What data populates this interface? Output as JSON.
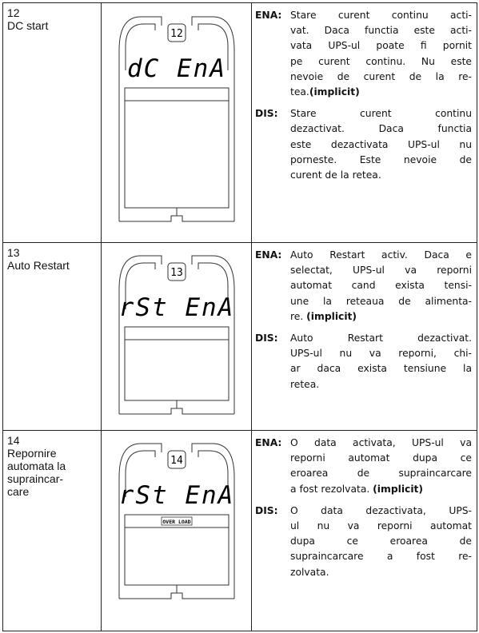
{
  "rows": [
    {
      "id": "12",
      "name": [
        "DC start"
      ],
      "display": {
        "code": "12",
        "text": "dC EnA"
      },
      "options": [
        {
          "label": "ENA:",
          "lines": [
            "Stare curent continu acti-",
            "vat. Daca functia este acti-",
            "vata UPS-ul poate fi pornit",
            "pe curent continu. Nu este",
            "nevoie de curent de la re-",
            "tea."
          ],
          "note": "(implicit)"
        },
        {
          "label": "DIS:",
          "lines": [
            "Stare curent continu",
            "dezactivat. Daca functia",
            "este dezactivata UPS-ul nu",
            "porneste. Este nevoie de",
            "curent de la retea."
          ]
        }
      ]
    },
    {
      "id": "13",
      "name": [
        "Auto Restart"
      ],
      "display": {
        "code": "13",
        "text": "rSt EnA"
      },
      "options": [
        {
          "label": "ENA:",
          "lines": [
            "Auto Restart activ. Daca e",
            "selectat, UPS-ul va reporni",
            "automat cand exista tensi-",
            "une la reteaua de alimenta-",
            "re. "
          ],
          "note": "(implicit)"
        },
        {
          "label": "DIS:",
          "lines": [
            "Auto Restart dezactivat.",
            "UPS-ul nu va reporni, chi-",
            "ar daca exista tensiune la",
            "retea."
          ]
        }
      ]
    },
    {
      "id": "14",
      "name": [
        "Repornire",
        "automata la",
        "supraincar-",
        "care"
      ],
      "display": {
        "code": "14",
        "text": "rSt EnA",
        "indicator": "OVER LOAD"
      },
      "options": [
        {
          "label": "ENA:",
          "lines": [
            "O data activata, UPS-ul va",
            "reporni automat dupa ce",
            "eroarea de supraincarcare",
            "a fost rezolvata. "
          ],
          "note": "(implicit)"
        },
        {
          "label": "DIS:",
          "lines": [
            "O data dezactivata, UPS-",
            "ul nu va reporni automat",
            "dupa ce eroarea de",
            "supraincarcare a fost re-",
            "zolvata."
          ]
        }
      ]
    }
  ]
}
